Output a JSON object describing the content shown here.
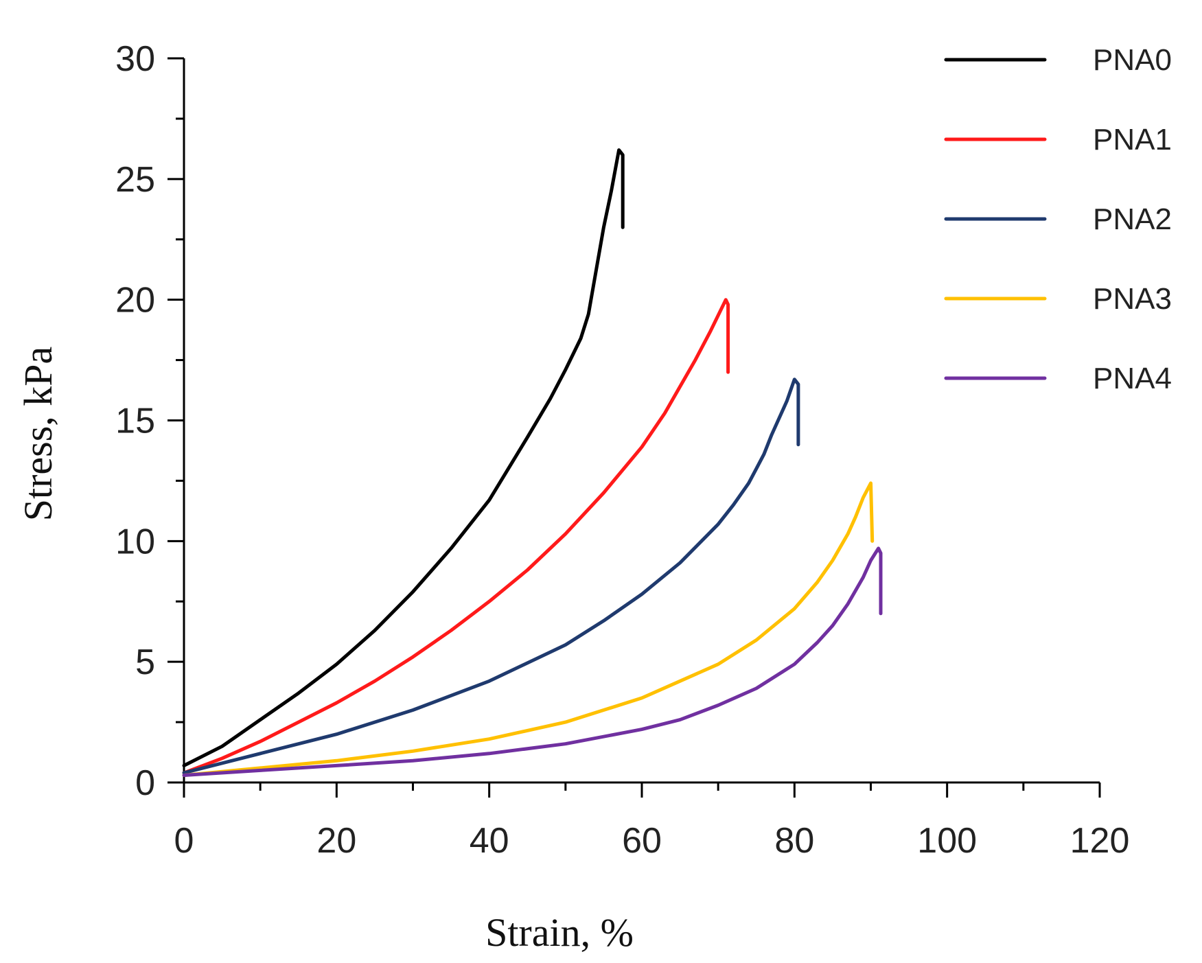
{
  "chart_data": {
    "type": "line",
    "title": "",
    "xlabel": "Strain, %",
    "ylabel": "Stress, kPa",
    "xlim": [
      0,
      120
    ],
    "ylim": [
      0,
      30
    ],
    "x_ticks": [
      0,
      20,
      40,
      60,
      80,
      100,
      120
    ],
    "y_ticks": [
      0,
      5,
      10,
      15,
      20,
      25,
      30
    ],
    "x_minor_step": 10,
    "y_minor_step": 2.5,
    "grid": false,
    "legend_position": "top-right",
    "series": [
      {
        "name": "PNA0",
        "color": "#000000",
        "x": [
          0,
          5,
          10,
          15,
          20,
          25,
          30,
          35,
          40,
          45,
          48,
          50,
          52,
          53,
          54,
          55,
          56,
          57,
          57.5,
          57.5
        ],
        "y": [
          0.7,
          1.5,
          2.6,
          3.7,
          4.9,
          6.3,
          7.9,
          9.7,
          11.7,
          14.3,
          15.9,
          17.1,
          18.4,
          19.4,
          21.2,
          23.0,
          24.5,
          26.2,
          26.0,
          23.0
        ]
      },
      {
        "name": "PNA1",
        "color": "#ff1a1a",
        "x": [
          0,
          5,
          10,
          15,
          20,
          25,
          30,
          35,
          40,
          45,
          50,
          55,
          60,
          63,
          65,
          67,
          69,
          71,
          71.3,
          71.3
        ],
        "y": [
          0.4,
          1.0,
          1.7,
          2.5,
          3.3,
          4.2,
          5.2,
          6.3,
          7.5,
          8.8,
          10.3,
          12.0,
          13.9,
          15.3,
          16.4,
          17.5,
          18.7,
          20.0,
          19.8,
          17.0
        ]
      },
      {
        "name": "PNA2",
        "color": "#1f3a6e",
        "x": [
          0,
          10,
          20,
          30,
          40,
          50,
          55,
          60,
          65,
          70,
          72,
          74,
          75,
          76,
          77,
          78,
          79,
          80,
          80.5,
          80.5
        ],
        "y": [
          0.4,
          1.2,
          2.0,
          3.0,
          4.2,
          5.7,
          6.7,
          7.8,
          9.1,
          10.7,
          11.5,
          12.4,
          13.0,
          13.6,
          14.4,
          15.1,
          15.8,
          16.7,
          16.5,
          14.0
        ]
      },
      {
        "name": "PNA3",
        "color": "#ffc000",
        "x": [
          0,
          10,
          20,
          30,
          40,
          50,
          60,
          65,
          70,
          75,
          80,
          83,
          85,
          87,
          88,
          89,
          90,
          90.2
        ],
        "y": [
          0.3,
          0.6,
          0.9,
          1.3,
          1.8,
          2.5,
          3.5,
          4.2,
          4.9,
          5.9,
          7.2,
          8.3,
          9.2,
          10.3,
          11.0,
          11.8,
          12.4,
          10.0
        ]
      },
      {
        "name": "PNA4",
        "color": "#7030a0",
        "x": [
          0,
          10,
          20,
          30,
          40,
          50,
          60,
          65,
          70,
          75,
          80,
          83,
          85,
          87,
          89,
          90,
          91,
          91.3,
          91.3
        ],
        "y": [
          0.3,
          0.5,
          0.7,
          0.9,
          1.2,
          1.6,
          2.2,
          2.6,
          3.2,
          3.9,
          4.9,
          5.8,
          6.5,
          7.4,
          8.5,
          9.2,
          9.7,
          9.5,
          7.0
        ]
      }
    ]
  }
}
